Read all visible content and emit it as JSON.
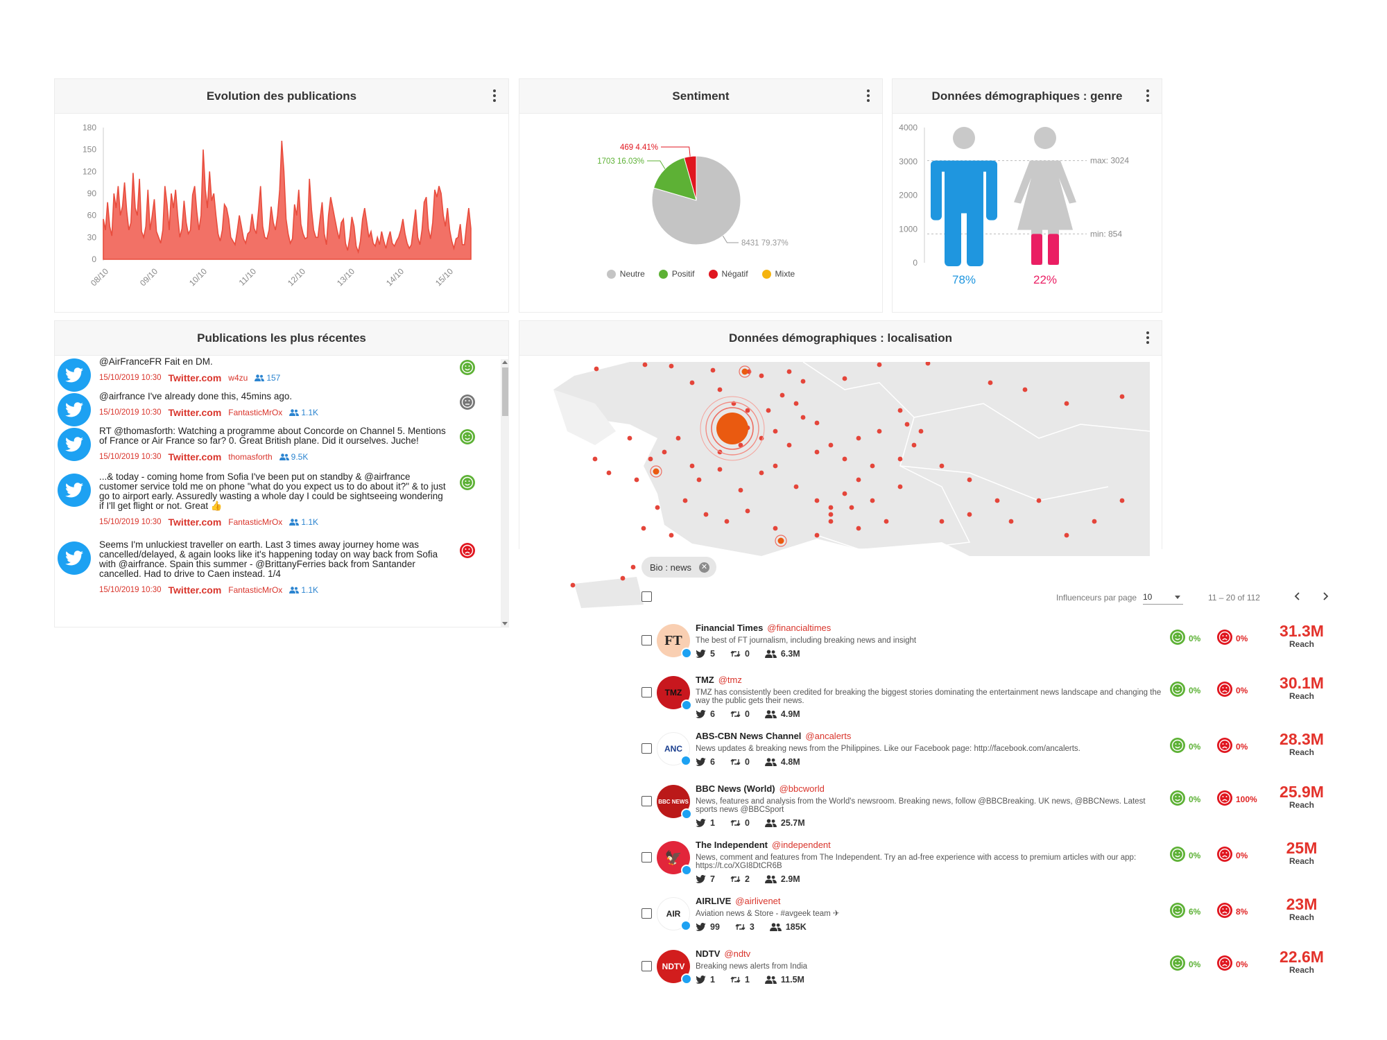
{
  "evolution": {
    "title": "Evolution des publications",
    "chart_data": {
      "type": "area",
      "ylim": [
        0,
        180
      ],
      "yticks": [
        "0",
        "30",
        "60",
        "90",
        "120",
        "150",
        "180"
      ],
      "xticks": [
        "08/10",
        "09/10",
        "10/10",
        "11/10",
        "12/10",
        "13/10",
        "14/10",
        "15/10"
      ],
      "color": "#f27166",
      "values": [
        55,
        40,
        78,
        45,
        32,
        90,
        70,
        100,
        60,
        72,
        105,
        66,
        40,
        50,
        118,
        70,
        60,
        110,
        38,
        30,
        45,
        95,
        40,
        60,
        82,
        38,
        30,
        22,
        40,
        100,
        75,
        40,
        90,
        70,
        95,
        60,
        30,
        42,
        80,
        50,
        35,
        40,
        88,
        100,
        65,
        40,
        60,
        150,
        95,
        70,
        120,
        80,
        90,
        60,
        35,
        25,
        40,
        75,
        70,
        55,
        30,
        25,
        20,
        38,
        60,
        45,
        28,
        22,
        35,
        38,
        62,
        42,
        35,
        65,
        100,
        45,
        30,
        28,
        40,
        72,
        50,
        40,
        60,
        95,
        162,
        120,
        55,
        35,
        22,
        28,
        75,
        60,
        95,
        48,
        35,
        28,
        30,
        110,
        68,
        40,
        30,
        30,
        55,
        78,
        35,
        20,
        60,
        85,
        70,
        55,
        40,
        28,
        50,
        55,
        22,
        12,
        30,
        58,
        45,
        18,
        10,
        25,
        55,
        70,
        50,
        30,
        38,
        22,
        18,
        30,
        20,
        38,
        25,
        15,
        28,
        38,
        22,
        18,
        25,
        30,
        40,
        55,
        35,
        22,
        15,
        20,
        45,
        68,
        30,
        20,
        40,
        78,
        85,
        42,
        28,
        50,
        95,
        85,
        100,
        90,
        60,
        45,
        70,
        40,
        25,
        15,
        28,
        30,
        48,
        20,
        20,
        48,
        70,
        42
      ]
    }
  },
  "sentiment": {
    "title": "Sentiment",
    "chart_data": {
      "type": "pie",
      "slices": [
        {
          "name": "Neutre",
          "value": 8431,
          "label": "8431 79.37%",
          "color": "#c4c4c4"
        },
        {
          "name": "Positif",
          "value": 1703,
          "label": "1703 16.03%",
          "color": "#5db135"
        },
        {
          "name": "Négatif",
          "value": 469,
          "label": "469 4.41%",
          "color": "#e0161f"
        },
        {
          "name": "Mixte",
          "value": 0,
          "label": "",
          "color": "#f5b40f"
        }
      ]
    }
  },
  "gender": {
    "title": "Données démographiques : genre",
    "chart_data": {
      "type": "bar",
      "ylim": [
        0,
        4000
      ],
      "yticks": [
        "0",
        "1000",
        "2000",
        "3000",
        "4000"
      ],
      "values": [
        3024,
        854
      ],
      "percent": [
        "78%",
        "22%"
      ],
      "max_label": "max: 3024",
      "min_label": "min: 854",
      "colors": [
        "#1f96df",
        "#ea1e63"
      ]
    }
  },
  "recent": {
    "title": "Publications les plus récentes",
    "items": [
      {
        "text": "@AirFranceFR Fait en DM.",
        "date": "15/10/2019 10:30",
        "source": "Twitter.com",
        "user": "w4zu",
        "count": "157",
        "sentiment": "positive"
      },
      {
        "text": "@airfrance I've already done this, 45mins ago.",
        "date": "15/10/2019 10:30",
        "source": "Twitter.com",
        "user": "FantasticMrOx",
        "count": "1.1K",
        "sentiment": "neutral"
      },
      {
        "text": "RT @thomasforth: Watching a programme about Concorde on Channel 5. Mentions of France or Air France so far? 0. Great British plane. Did it ourselves. Juche!",
        "date": "15/10/2019 10:30",
        "source": "Twitter.com",
        "user": "thomasforth",
        "count": "9.5K",
        "sentiment": "positive"
      },
      {
        "text": "...& today - coming home from Sofia I've been put on standby & @airfrance customer service told me on phone \"what do you expect us to do about it?\" & to just go to airport early. Assuredly wasting a whole day I could be sightseeing wondering if I'll get flight or not. Great 👍",
        "date": "15/10/2019 10:30",
        "source": "Twitter.com",
        "user": "FantasticMrOx",
        "count": "1.1K",
        "sentiment": "positive"
      },
      {
        "text": "Seems I'm unluckiest traveller on earth. Last 3 times away journey home was cancelled/delayed, & again looks like it's happening today on way back from Sofia with @airfrance. Spain this summer - @BrittanyFerries back from Santander cancelled. Had to drive to Caen instead. 1/4",
        "date": "15/10/2019 10:30",
        "source": "Twitter.com",
        "user": "FantasticMrOx",
        "count": "1.1K",
        "sentiment": "negative"
      }
    ]
  },
  "geo": {
    "title": "Données démographiques : localisation"
  },
  "filter_chip": {
    "label": "Bio : news"
  },
  "pagination": {
    "per_page_label": "Influenceurs par page",
    "per_page_value": "10",
    "range": "11 – 20 of 112"
  },
  "influencers": [
    {
      "name": "Financial Times",
      "handle": "@financialtimes",
      "desc": "The best of FT journalism, including breaking news and insight",
      "tweets": "5",
      "retweets": "0",
      "followers": "6.3M",
      "pos": "0%",
      "neg": "0%",
      "reach": "31.3M",
      "avatar_text": "FT",
      "avatar_bg": "#f9cfb2",
      "avatar_fg": "#222"
    },
    {
      "name": "TMZ",
      "handle": "@tmz",
      "desc": "TMZ has consistently been credited for breaking the biggest stories dominating the entertainment news landscape and changing the way the public gets their news.",
      "tweets": "6",
      "retweets": "0",
      "followers": "4.9M",
      "pos": "0%",
      "neg": "0%",
      "reach": "30.1M",
      "avatar_text": "TMZ",
      "avatar_bg": "#c8171e",
      "avatar_fg": "#111"
    },
    {
      "name": "ABS-CBN News Channel",
      "handle": "@ancalerts",
      "desc": "News updates & breaking news from the Philippines. Like our Facebook page: http://facebook.com/ancalerts.",
      "tweets": "6",
      "retweets": "0",
      "followers": "4.8M",
      "pos": "0%",
      "neg": "0%",
      "reach": "28.3M",
      "avatar_text": "ANC",
      "avatar_bg": "#ffffff",
      "avatar_fg": "#1b3f8f"
    },
    {
      "name": "BBC News (World)",
      "handle": "@bbcworld",
      "desc": "News, features and analysis from the World's newsroom. Breaking news, follow @BBCBreaking. UK news, @BBCNews. Latest sports news @BBCSport",
      "tweets": "1",
      "retweets": "0",
      "followers": "25.7M",
      "pos": "0%",
      "neg": "100%",
      "reach": "25.9M",
      "avatar_text": "BBC NEWS",
      "avatar_bg": "#bb1919",
      "avatar_fg": "#fff"
    },
    {
      "name": "The Independent",
      "handle": "@independent",
      "desc": "News, comment and features from The Independent. Try an ad-free experience with access to premium articles with our app: https://t.co/XGI8DtCR6B",
      "tweets": "7",
      "retweets": "2",
      "followers": "2.9M",
      "pos": "0%",
      "neg": "0%",
      "reach": "25M",
      "avatar_text": "🦅",
      "avatar_bg": "#e2263a",
      "avatar_fg": "#fff"
    },
    {
      "name": "AIRLIVE",
      "handle": "@airlivenet",
      "desc": "Aviation news & Store - #avgeek team ✈",
      "tweets": "99",
      "retweets": "3",
      "followers": "185K",
      "pos": "6%",
      "neg": "8%",
      "reach": "23M",
      "avatar_text": "AIR",
      "avatar_bg": "#ffffff",
      "avatar_fg": "#222"
    },
    {
      "name": "NDTV",
      "handle": "@ndtv",
      "desc": "Breaking news alerts from India",
      "tweets": "1",
      "retweets": "1",
      "followers": "11.5M",
      "pos": "0%",
      "neg": "0%",
      "reach": "22.6M",
      "avatar_text": "NDTV",
      "avatar_bg": "#d21d1d",
      "avatar_fg": "#fff"
    }
  ],
  "reach_label": "Reach"
}
